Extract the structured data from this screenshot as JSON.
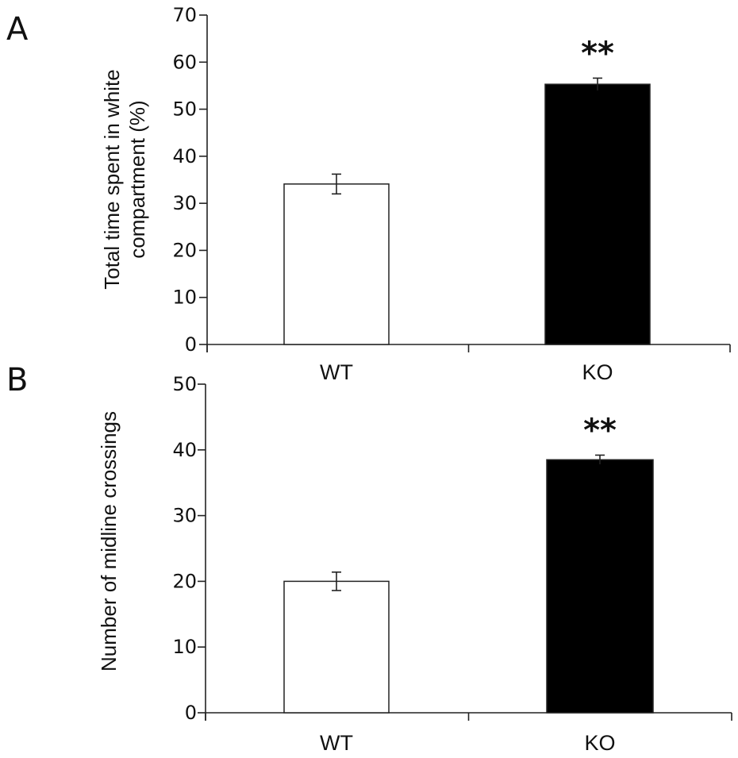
{
  "chart_data": [
    {
      "type": "bar",
      "panel_label": "A",
      "title": "",
      "xlabel": "",
      "ylabel_lines": [
        "Total time spent in white",
        "compartment (%)"
      ],
      "ylabel": "Total time spent in white compartment (%)",
      "categories": [
        "WT",
        "KO"
      ],
      "values": [
        34.1,
        55.3
      ],
      "errors": [
        2.1,
        1.3
      ],
      "bar_colors": [
        "#ffffff",
        "#000000"
      ],
      "significance": [
        "",
        "**"
      ],
      "ylim": [
        0,
        70
      ],
      "yticks": [
        0,
        10,
        20,
        30,
        40,
        50,
        60,
        70
      ],
      "grid": false,
      "legend": "none"
    },
    {
      "type": "bar",
      "panel_label": "B",
      "title": "",
      "xlabel": "",
      "ylabel_lines": [
        "Number of midline crossings"
      ],
      "ylabel": "Number of midline crossings",
      "categories": [
        "WT",
        "KO"
      ],
      "values": [
        20.0,
        38.5
      ],
      "errors": [
        1.4,
        0.7
      ],
      "bar_colors": [
        "#ffffff",
        "#000000"
      ],
      "significance": [
        "",
        "**"
      ],
      "ylim": [
        0,
        50
      ],
      "yticks": [
        0,
        10,
        20,
        30,
        40,
        50
      ],
      "grid": false,
      "legend": "none"
    }
  ]
}
